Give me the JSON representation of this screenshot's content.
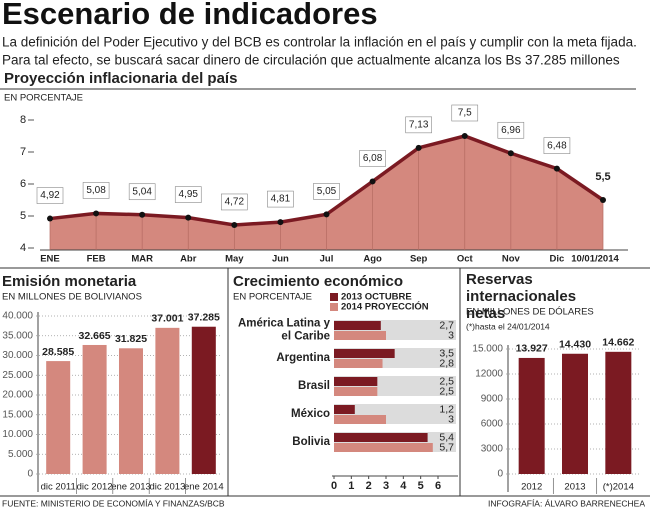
{
  "header": {
    "title": "Escenario de indicadores",
    "text": [
      "La definición del Poder Ejecutivo y del BCB es controlar la inflación en el país y cumplir con la meta fijada.",
      "Para tal efecto, se buscará sacar dinero de circulación que actualmente alcanza los Bs 37.285 millones"
    ]
  },
  "chart_data": [
    {
      "type": "area",
      "title": "Proyección inflacionaria del país",
      "subtitle": "EN PORCENTAJE",
      "categories": [
        "ENE",
        "FEB",
        "MAR",
        "Abr",
        "May",
        "Jun",
        "Jul",
        "Ago",
        "Sep",
        "Oct",
        "Nov",
        "Dic",
        "10/01/2014"
      ],
      "values": [
        4.92,
        5.08,
        5.04,
        4.95,
        4.72,
        4.81,
        5.05,
        6.08,
        7.13,
        7.5,
        6.96,
        6.48,
        5.5
      ],
      "value_labels": [
        "4,92",
        "5,08",
        "5,04",
        "4,95",
        "4,72",
        "4,81",
        "5,05",
        "6,08",
        "7,13",
        "7,5",
        "6,96",
        "6,48",
        "5,5"
      ],
      "color": "#d4887e",
      "line_color": "#7b1a22",
      "ylim": [
        4,
        8
      ],
      "yticks": [
        4,
        5,
        6,
        7,
        8
      ]
    },
    {
      "type": "bar",
      "title": "Emisión monetaria",
      "subtitle": "EN MILLONES DE BOLIVIANOS",
      "categories": [
        "dic 2011",
        "dic 2012",
        "ene 2013",
        "dic 2013",
        "ene 2014"
      ],
      "values": [
        28585,
        32665,
        31825,
        37001,
        37285
      ],
      "value_labels": [
        "28.585",
        "32.665",
        "31.825",
        "37.001",
        "37.285"
      ],
      "colors": [
        "#d4887e",
        "#d4887e",
        "#d4887e",
        "#d4887e",
        "#7b1a22"
      ],
      "ylim": [
        0,
        40000
      ],
      "yticks": [
        0,
        {
          "value": 5000,
          "label": "5.000"
        },
        {
          "value": 10000,
          "label": "10.000"
        },
        {
          "value": 15000,
          "label": "15.000"
        },
        {
          "value": 20000,
          "label": "20.000"
        },
        {
          "value": 25000,
          "label": "25.000"
        },
        {
          "value": 30000,
          "label": "30.000"
        },
        {
          "value": 35000,
          "label": "35.000"
        },
        {
          "value": 40000,
          "label": "40.000"
        }
      ],
      "grid": true
    },
    {
      "type": "hbar",
      "title": "Crecimiento económico",
      "subtitle": "EN PORCENTAJE",
      "categories": [
        "América Latina y el Caribe",
        "Argentina",
        "Brasil",
        "México",
        "Bolivia"
      ],
      "series": [
        {
          "name": "2013 OCTUBRE",
          "color": "#7b1a22",
          "values": [
            2.7,
            3.5,
            2.5,
            1.2,
            5.4
          ],
          "value_labels": [
            "2,7",
            "3,5",
            "2,5",
            "1,2",
            "5,4"
          ]
        },
        {
          "name": "2014 PROYECCIÓN",
          "color": "#d4887e",
          "values": [
            3,
            2.8,
            2.5,
            3,
            5.7
          ],
          "value_labels": [
            "3",
            "2,8",
            "2,5",
            "3",
            "5,7"
          ]
        }
      ],
      "xlim": [
        0,
        6
      ],
      "xticks": [
        0,
        1,
        2,
        3,
        4,
        5,
        6
      ]
    },
    {
      "type": "bar",
      "title": "Reservas internacionales netas",
      "subtitle": "EN MILLONES DE DÓLARES",
      "note": "(*)hasta el 24/01/2014",
      "categories": [
        "2012",
        "2013",
        "(*)2014"
      ],
      "values": [
        13927,
        14430,
        14662
      ],
      "value_labels": [
        "13.927",
        "14.430",
        "14.662"
      ],
      "colors": [
        "#7b1a22",
        "#7b1a22",
        "#7b1a22"
      ],
      "ylim": [
        0,
        15000
      ],
      "yticks": [
        0,
        3000,
        6000,
        9000,
        12000,
        {
          "value": 15000,
          "label": "15.000"
        }
      ],
      "grid": true
    }
  ],
  "footer": {
    "source": "FUENTE: MINISTERIO DE ECONOMÍA Y FINANZAS/BCB",
    "credit": "INFOGRAFÍA: ÁLVARO BARRENECHEA"
  }
}
